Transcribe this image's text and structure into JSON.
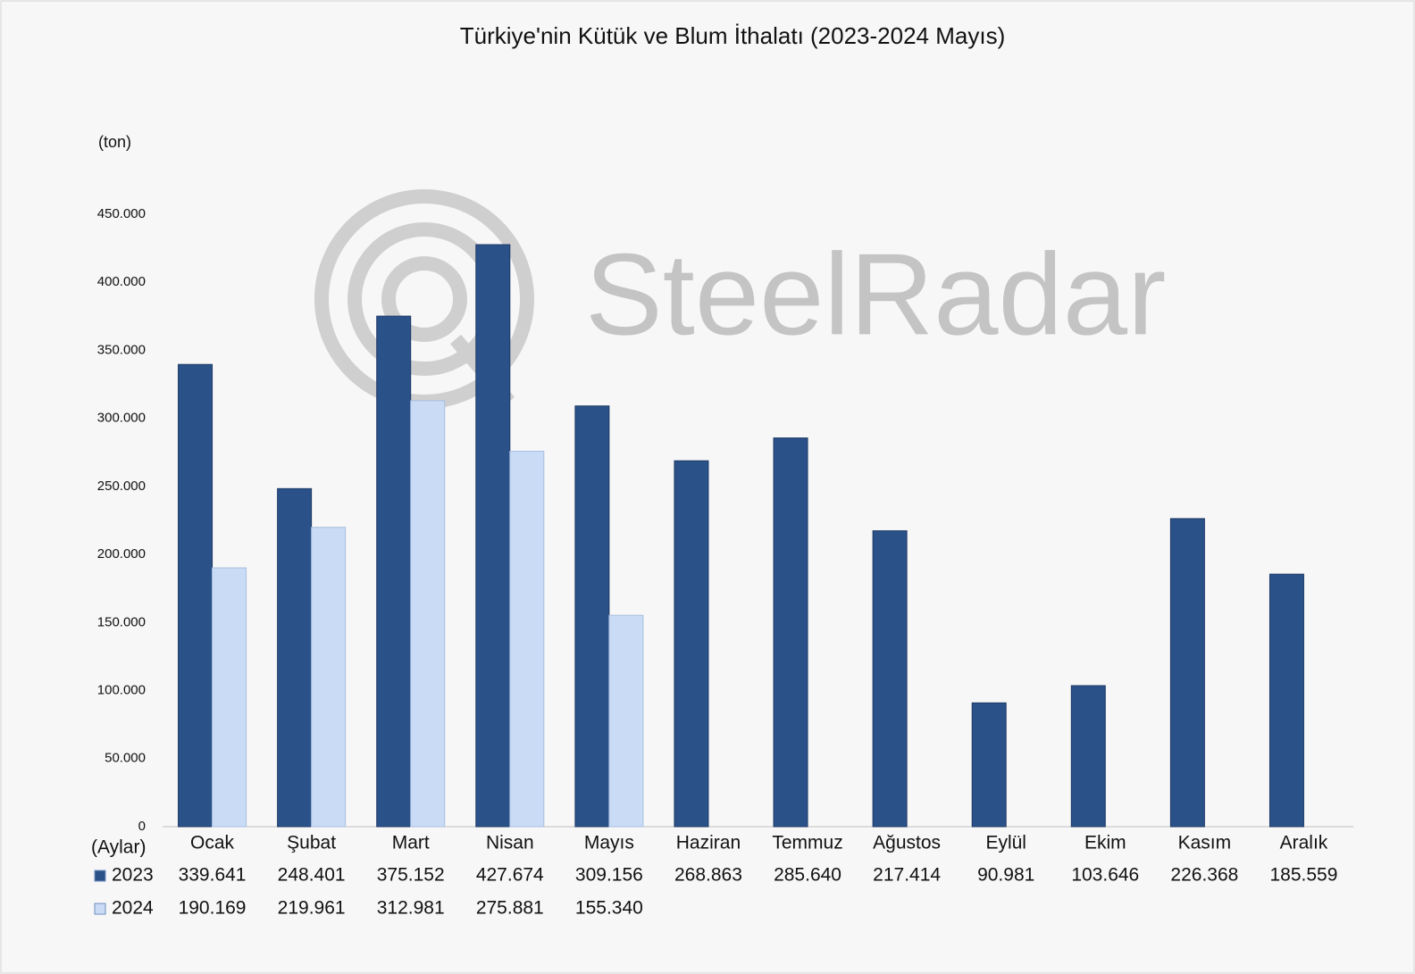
{
  "chart_data": {
    "type": "bar",
    "title": "Türkiye'nin Kütük ve Blum İthalatı (2023-2024 Mayıs)",
    "y_label": "(ton)",
    "x_label": "(Aylar)",
    "watermark": "SteelRadar",
    "categories": [
      "Ocak",
      "Şubat",
      "Mart",
      "Nisan",
      "Mayıs",
      "Haziran",
      "Temmuz",
      "Ağustos",
      "Eylül",
      "Ekim",
      "Kasım",
      "Aralık"
    ],
    "series": [
      {
        "name": "2023",
        "color": "#2b5189",
        "values": [
          339641,
          248401,
          375152,
          427674,
          309156,
          268863,
          285640,
          217414,
          90981,
          103646,
          226368,
          185559
        ],
        "value_labels": [
          "339.641",
          "248.401",
          "375.152",
          "427.674",
          "309.156",
          "268.863",
          "285.640",
          "217.414",
          "90.981",
          "103.646",
          "226.368",
          "185.559"
        ]
      },
      {
        "name": "2024",
        "color": "#c9dbf5",
        "values": [
          190169,
          219961,
          312981,
          275881,
          155340,
          null,
          null,
          null,
          null,
          null,
          null,
          null
        ],
        "value_labels": [
          "190.169",
          "219.961",
          "312.981",
          "275.881",
          "155.340",
          null,
          null,
          null,
          null,
          null,
          null,
          null
        ]
      }
    ],
    "ylim": [
      0,
      450000
    ],
    "yticks": [
      0,
      {
        "value": 50000,
        "label": "50.000"
      },
      {
        "value": 100000,
        "label": "100.000"
      },
      {
        "value": 150000,
        "label": "150.000"
      },
      {
        "value": 200000,
        "label": "200.000"
      },
      {
        "value": 250000,
        "label": "250.000"
      },
      {
        "value": 300000,
        "label": "300.000"
      },
      {
        "value": 350000,
        "label": "350.000"
      },
      {
        "value": 400000,
        "label": "400.000"
      },
      {
        "value": 450000,
        "label": "450.000"
      }
    ],
    "grid": false
  }
}
